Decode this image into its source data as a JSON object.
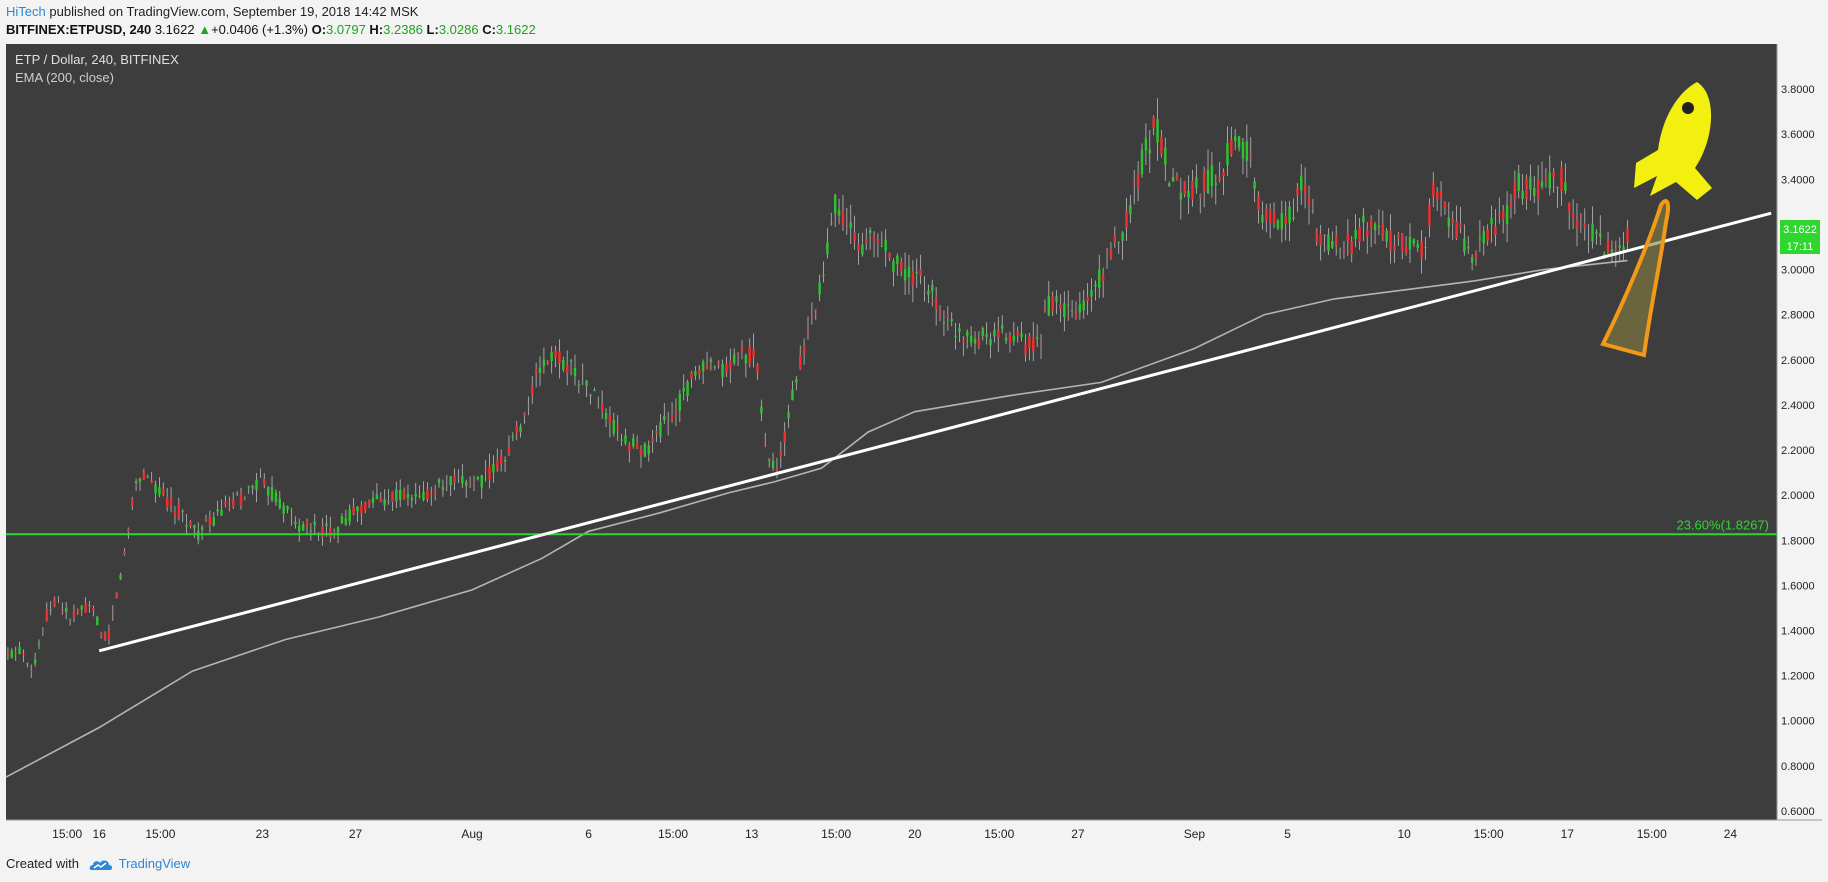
{
  "header": {
    "author": "HiTech",
    "published": "published on TradingView.com, September 19, 2018 14:42 MSK",
    "symbol": "BITFINEX:ETPUSD, 240",
    "last": "3.1622",
    "change_arrow": "▲",
    "change": "+0.0406 (+1.3%)",
    "open_label": "O:",
    "open": "3.0797",
    "high_label": "H:",
    "high": "3.2386",
    "low_label": "L:",
    "low": "3.0286",
    "close_label": "C:",
    "close": "3.1622"
  },
  "legend": {
    "title": "ETP / Dollar, 240, BITFINEX",
    "indicator": "EMA (200, close)"
  },
  "footer": {
    "created_with": "Created with",
    "brand": "TradingView",
    "logo_icon": "tradingview-cloud-icon"
  },
  "colors": {
    "background": "#3d3d3d",
    "up": "#2fc42f",
    "down": "#ef2f2f",
    "ema": "#b4b4b4",
    "trendline": "#ffffff",
    "fib": "#2fd62f",
    "rocket": "#f3ef0e",
    "flame": "#f29a17",
    "price_badge": "#2fd62f"
  },
  "chart_data": {
    "type": "candlestick",
    "ylim": [
      0.56,
      4.0
    ],
    "y_ticks": [
      0.6,
      0.8,
      1.0,
      1.2,
      1.4,
      1.6,
      1.8,
      2.0,
      2.2,
      2.4,
      2.6,
      2.8,
      3.0,
      3.2,
      3.4,
      3.6,
      3.8
    ],
    "y_tick_labels": [
      "0.6000",
      "0.8000",
      "1.0000",
      "1.2000",
      "1.4000",
      "1.6000",
      "1.8000",
      "2.0000",
      "2.2000",
      "2.4000",
      "2.6000",
      "2.8000",
      "3.0000",
      "3.2000",
      "3.4000",
      "3.6000",
      "3.8000"
    ],
    "x_range": [
      "2018-07-12T00:00",
      "2018-09-26T00:00"
    ],
    "x_ticks": [
      {
        "t": "2018-07-14T15:00",
        "label": "15:00"
      },
      {
        "t": "2018-07-16T00:00",
        "label": "16"
      },
      {
        "t": "2018-07-18T15:00",
        "label": "15:00"
      },
      {
        "t": "2018-07-23T00:00",
        "label": "23"
      },
      {
        "t": "2018-07-27T00:00",
        "label": "27"
      },
      {
        "t": "2018-08-01T00:00",
        "label": "Aug"
      },
      {
        "t": "2018-08-06T00:00",
        "label": "6"
      },
      {
        "t": "2018-08-09T15:00",
        "label": "15:00"
      },
      {
        "t": "2018-08-13T00:00",
        "label": "13"
      },
      {
        "t": "2018-08-16T15:00",
        "label": "15:00"
      },
      {
        "t": "2018-08-20T00:00",
        "label": "20"
      },
      {
        "t": "2018-08-23T15:00",
        "label": "15:00"
      },
      {
        "t": "2018-08-27T00:00",
        "label": "27"
      },
      {
        "t": "2018-09-01T00:00",
        "label": "Sep"
      },
      {
        "t": "2018-09-05T00:00",
        "label": "5"
      },
      {
        "t": "2018-09-10T00:00",
        "label": "10"
      },
      {
        "t": "2018-09-13T15:00",
        "label": "15:00"
      },
      {
        "t": "2018-09-17T00:00",
        "label": "17"
      },
      {
        "t": "2018-09-20T15:00",
        "label": "15:00"
      },
      {
        "t": "2018-09-24T00:00",
        "label": "24"
      }
    ],
    "price_path": [
      {
        "t": "2018-07-12T00:00",
        "v": 1.28
      },
      {
        "t": "2018-07-12T16:00",
        "v": 1.32
      },
      {
        "t": "2018-07-13T04:00",
        "v": 1.22
      },
      {
        "t": "2018-07-13T16:00",
        "v": 1.45
      },
      {
        "t": "2018-07-14T04:00",
        "v": 1.55
      },
      {
        "t": "2018-07-14T18:00",
        "v": 1.45
      },
      {
        "t": "2018-07-15T08:00",
        "v": 1.5
      },
      {
        "t": "2018-07-15T20:00",
        "v": 1.48
      },
      {
        "t": "2018-07-16T04:00",
        "v": 1.35
      },
      {
        "t": "2018-07-16T10:00",
        "v": 1.38
      },
      {
        "t": "2018-07-16T20:00",
        "v": 1.6
      },
      {
        "t": "2018-07-17T04:00",
        "v": 1.78
      },
      {
        "t": "2018-07-17T12:00",
        "v": 2.05
      },
      {
        "t": "2018-07-18T00:00",
        "v": 2.1
      },
      {
        "t": "2018-07-18T16:00",
        "v": 2.0
      },
      {
        "t": "2018-07-19T12:00",
        "v": 1.92
      },
      {
        "t": "2018-07-20T06:00",
        "v": 1.83
      },
      {
        "t": "2018-07-21T04:00",
        "v": 1.92
      },
      {
        "t": "2018-07-22T00:00",
        "v": 1.98
      },
      {
        "t": "2018-07-22T20:00",
        "v": 2.06
      },
      {
        "t": "2018-07-23T16:00",
        "v": 1.98
      },
      {
        "t": "2018-07-24T12:00",
        "v": 1.86
      },
      {
        "t": "2018-07-25T08:00",
        "v": 1.85
      },
      {
        "t": "2018-07-26T00:00",
        "v": 1.84
      },
      {
        "t": "2018-07-26T20:00",
        "v": 1.92
      },
      {
        "t": "2018-07-27T16:00",
        "v": 1.97
      },
      {
        "t": "2018-07-28T16:00",
        "v": 2.0
      },
      {
        "t": "2018-07-29T16:00",
        "v": 1.98
      },
      {
        "t": "2018-07-30T16:00",
        "v": 2.04
      },
      {
        "t": "2018-07-31T16:00",
        "v": 2.06
      },
      {
        "t": "2018-08-01T08:00",
        "v": 2.06
      },
      {
        "t": "2018-08-02T00:00",
        "v": 2.12
      },
      {
        "t": "2018-08-02T16:00",
        "v": 2.22
      },
      {
        "t": "2018-08-03T08:00",
        "v": 2.38
      },
      {
        "t": "2018-08-03T20:00",
        "v": 2.55
      },
      {
        "t": "2018-08-04T12:00",
        "v": 2.62
      },
      {
        "t": "2018-08-05T04:00",
        "v": 2.58
      },
      {
        "t": "2018-08-05T20:00",
        "v": 2.5
      },
      {
        "t": "2018-08-06T12:00",
        "v": 2.4
      },
      {
        "t": "2018-08-07T04:00",
        "v": 2.28
      },
      {
        "t": "2018-08-07T20:00",
        "v": 2.22
      },
      {
        "t": "2018-08-08T12:00",
        "v": 2.2
      },
      {
        "t": "2018-08-09T04:00",
        "v": 2.3
      },
      {
        "t": "2018-08-09T20:00",
        "v": 2.4
      },
      {
        "t": "2018-08-10T12:00",
        "v": 2.52
      },
      {
        "t": "2018-08-11T04:00",
        "v": 2.56
      },
      {
        "t": "2018-08-11T20:00",
        "v": 2.55
      },
      {
        "t": "2018-08-12T12:00",
        "v": 2.63
      },
      {
        "t": "2018-08-13T04:00",
        "v": 2.62
      },
      {
        "t": "2018-08-13T16:00",
        "v": 2.15
      },
      {
        "t": "2018-08-14T04:00",
        "v": 2.12
      },
      {
        "t": "2018-08-14T16:00",
        "v": 2.4
      },
      {
        "t": "2018-08-15T04:00",
        "v": 2.62
      },
      {
        "t": "2018-08-15T16:00",
        "v": 2.8
      },
      {
        "t": "2018-08-16T04:00",
        "v": 3.0
      },
      {
        "t": "2018-08-16T12:00",
        "v": 3.32
      },
      {
        "t": "2018-08-17T00:00",
        "v": 3.22
      },
      {
        "t": "2018-08-17T16:00",
        "v": 3.1
      },
      {
        "t": "2018-08-18T08:00",
        "v": 3.15
      },
      {
        "t": "2018-08-19T00:00",
        "v": 3.05
      },
      {
        "t": "2018-08-19T16:00",
        "v": 2.97
      },
      {
        "t": "2018-08-20T08:00",
        "v": 2.95
      },
      {
        "t": "2018-08-20T20:00",
        "v": 2.88
      },
      {
        "t": "2018-08-21T12:00",
        "v": 2.75
      },
      {
        "t": "2018-08-22T04:00",
        "v": 2.72
      },
      {
        "t": "2018-08-22T20:00",
        "v": 2.7
      },
      {
        "t": "2018-08-23T12:00",
        "v": 2.72
      },
      {
        "t": "2018-08-24T04:00",
        "v": 2.7
      },
      {
        "t": "2018-08-24T20:00",
        "v": 2.66
      },
      {
        "t": "2018-08-25T08:00",
        "v": 2.66
      },
      {
        "t": "2018-08-25T16:00",
        "v": 2.85
      },
      {
        "t": "2018-08-26T08:00",
        "v": 2.82
      },
      {
        "t": "2018-08-27T00:00",
        "v": 2.8
      },
      {
        "t": "2018-08-27T16:00",
        "v": 2.9
      },
      {
        "t": "2018-08-28T08:00",
        "v": 3.05
      },
      {
        "t": "2018-08-29T00:00",
        "v": 3.2
      },
      {
        "t": "2018-08-29T16:00",
        "v": 3.45
      },
      {
        "t": "2018-08-30T08:00",
        "v": 3.65
      },
      {
        "t": "2018-08-31T00:00",
        "v": 3.4
      },
      {
        "t": "2018-08-31T16:00",
        "v": 3.35
      },
      {
        "t": "2018-09-01T08:00",
        "v": 3.38
      },
      {
        "t": "2018-09-02T00:00",
        "v": 3.42
      },
      {
        "t": "2018-09-02T16:00",
        "v": 3.56
      },
      {
        "t": "2018-09-03T08:00",
        "v": 3.5
      },
      {
        "t": "2018-09-03T20:00",
        "v": 3.25
      },
      {
        "t": "2018-09-04T12:00",
        "v": 3.22
      },
      {
        "t": "2018-09-05T04:00",
        "v": 3.25
      },
      {
        "t": "2018-09-05T16:00",
        "v": 3.38
      },
      {
        "t": "2018-09-06T08:00",
        "v": 3.15
      },
      {
        "t": "2018-09-07T00:00",
        "v": 3.12
      },
      {
        "t": "2018-09-07T16:00",
        "v": 3.11
      },
      {
        "t": "2018-09-08T08:00",
        "v": 3.2
      },
      {
        "t": "2018-09-09T00:00",
        "v": 3.18
      },
      {
        "t": "2018-09-09T16:00",
        "v": 3.1
      },
      {
        "t": "2018-09-10T08:00",
        "v": 3.12
      },
      {
        "t": "2018-09-10T20:00",
        "v": 3.1
      },
      {
        "t": "2018-09-11T08:00",
        "v": 3.38
      },
      {
        "t": "2018-09-11T20:00",
        "v": 3.25
      },
      {
        "t": "2018-09-12T12:00",
        "v": 3.15
      },
      {
        "t": "2018-09-13T00:00",
        "v": 3.02
      },
      {
        "t": "2018-09-13T16:00",
        "v": 3.2
      },
      {
        "t": "2018-09-14T08:00",
        "v": 3.22
      },
      {
        "t": "2018-09-14T20:00",
        "v": 3.38
      },
      {
        "t": "2018-09-15T12:00",
        "v": 3.35
      },
      {
        "t": "2018-09-16T04:00",
        "v": 3.38
      },
      {
        "t": "2018-09-16T20:00",
        "v": 3.4
      },
      {
        "t": "2018-09-17T08:00",
        "v": 3.22
      },
      {
        "t": "2018-09-17T20:00",
        "v": 3.2
      },
      {
        "t": "2018-09-18T12:00",
        "v": 3.1
      },
      {
        "t": "2018-09-19T04:00",
        "v": 3.1
      },
      {
        "t": "2018-09-19T14:00",
        "v": 3.16
      }
    ],
    "ema_path": [
      {
        "t": "2018-07-12T00:00",
        "v": 0.75
      },
      {
        "t": "2018-07-16T00:00",
        "v": 0.97
      },
      {
        "t": "2018-07-20T00:00",
        "v": 1.22
      },
      {
        "t": "2018-07-24T00:00",
        "v": 1.36
      },
      {
        "t": "2018-07-28T00:00",
        "v": 1.46
      },
      {
        "t": "2018-08-01T00:00",
        "v": 1.58
      },
      {
        "t": "2018-08-04T00:00",
        "v": 1.72
      },
      {
        "t": "2018-08-06T00:00",
        "v": 1.84
      },
      {
        "t": "2018-08-09T00:00",
        "v": 1.92
      },
      {
        "t": "2018-08-12T00:00",
        "v": 2.01
      },
      {
        "t": "2018-08-14T00:00",
        "v": 2.06
      },
      {
        "t": "2018-08-16T00:00",
        "v": 2.12
      },
      {
        "t": "2018-08-18T00:00",
        "v": 2.28
      },
      {
        "t": "2018-08-20T00:00",
        "v": 2.37
      },
      {
        "t": "2018-08-24T00:00",
        "v": 2.44
      },
      {
        "t": "2018-08-28T00:00",
        "v": 2.5
      },
      {
        "t": "2018-09-01T00:00",
        "v": 2.65
      },
      {
        "t": "2018-09-04T00:00",
        "v": 2.8
      },
      {
        "t": "2018-09-07T00:00",
        "v": 2.87
      },
      {
        "t": "2018-09-10T00:00",
        "v": 2.91
      },
      {
        "t": "2018-09-13T00:00",
        "v": 2.95
      },
      {
        "t": "2018-09-16T00:00",
        "v": 3.0
      },
      {
        "t": "2018-09-19T14:00",
        "v": 3.04
      }
    ],
    "trendline": {
      "from": {
        "t": "2018-07-16T00:00",
        "v": 1.31
      },
      "to": {
        "t": "2018-09-25T18:00",
        "v": 3.25
      }
    },
    "fib_level": {
      "label": "23.60%(1.8267)",
      "value": 1.8267
    },
    "last_price_badge": {
      "price": "3.1622",
      "countdown": "17:11"
    }
  }
}
